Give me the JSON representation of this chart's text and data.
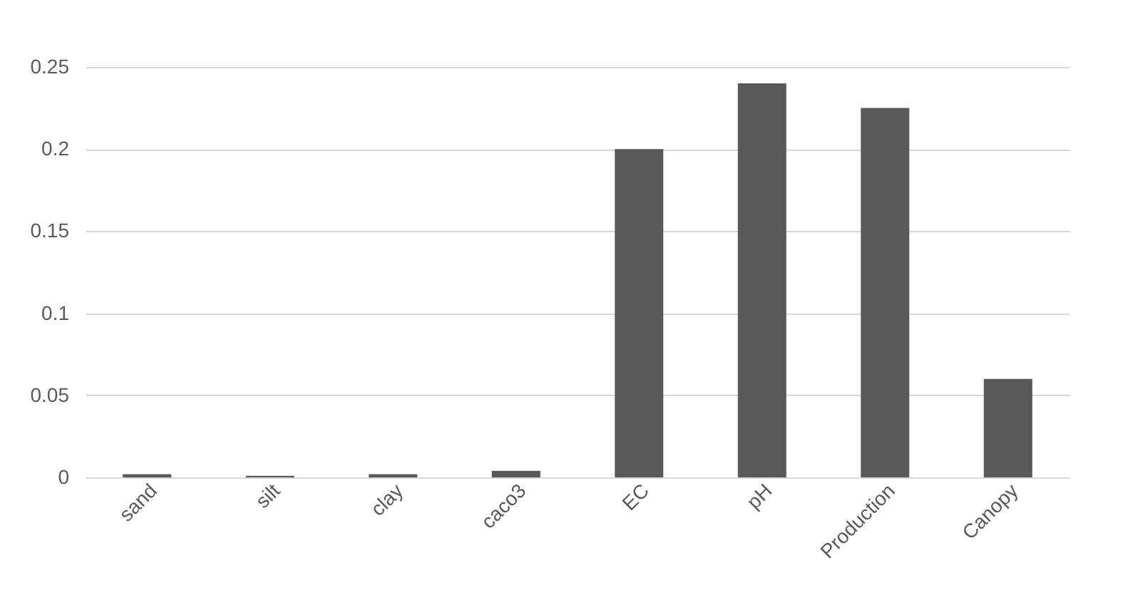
{
  "chart_data": {
    "type": "bar",
    "categories": [
      "sand",
      "silt",
      "clay",
      "caco3",
      "EC",
      "pH",
      "Production",
      "Canopy"
    ],
    "values": [
      0.002,
      0.001,
      0.002,
      0.004,
      0.2,
      0.24,
      0.225,
      0.06
    ],
    "color": "#595959",
    "ylim": [
      0,
      0.25
    ],
    "yticks": [
      0,
      0.05,
      0.1,
      0.15,
      0.2,
      0.25
    ],
    "grid": "y"
  }
}
